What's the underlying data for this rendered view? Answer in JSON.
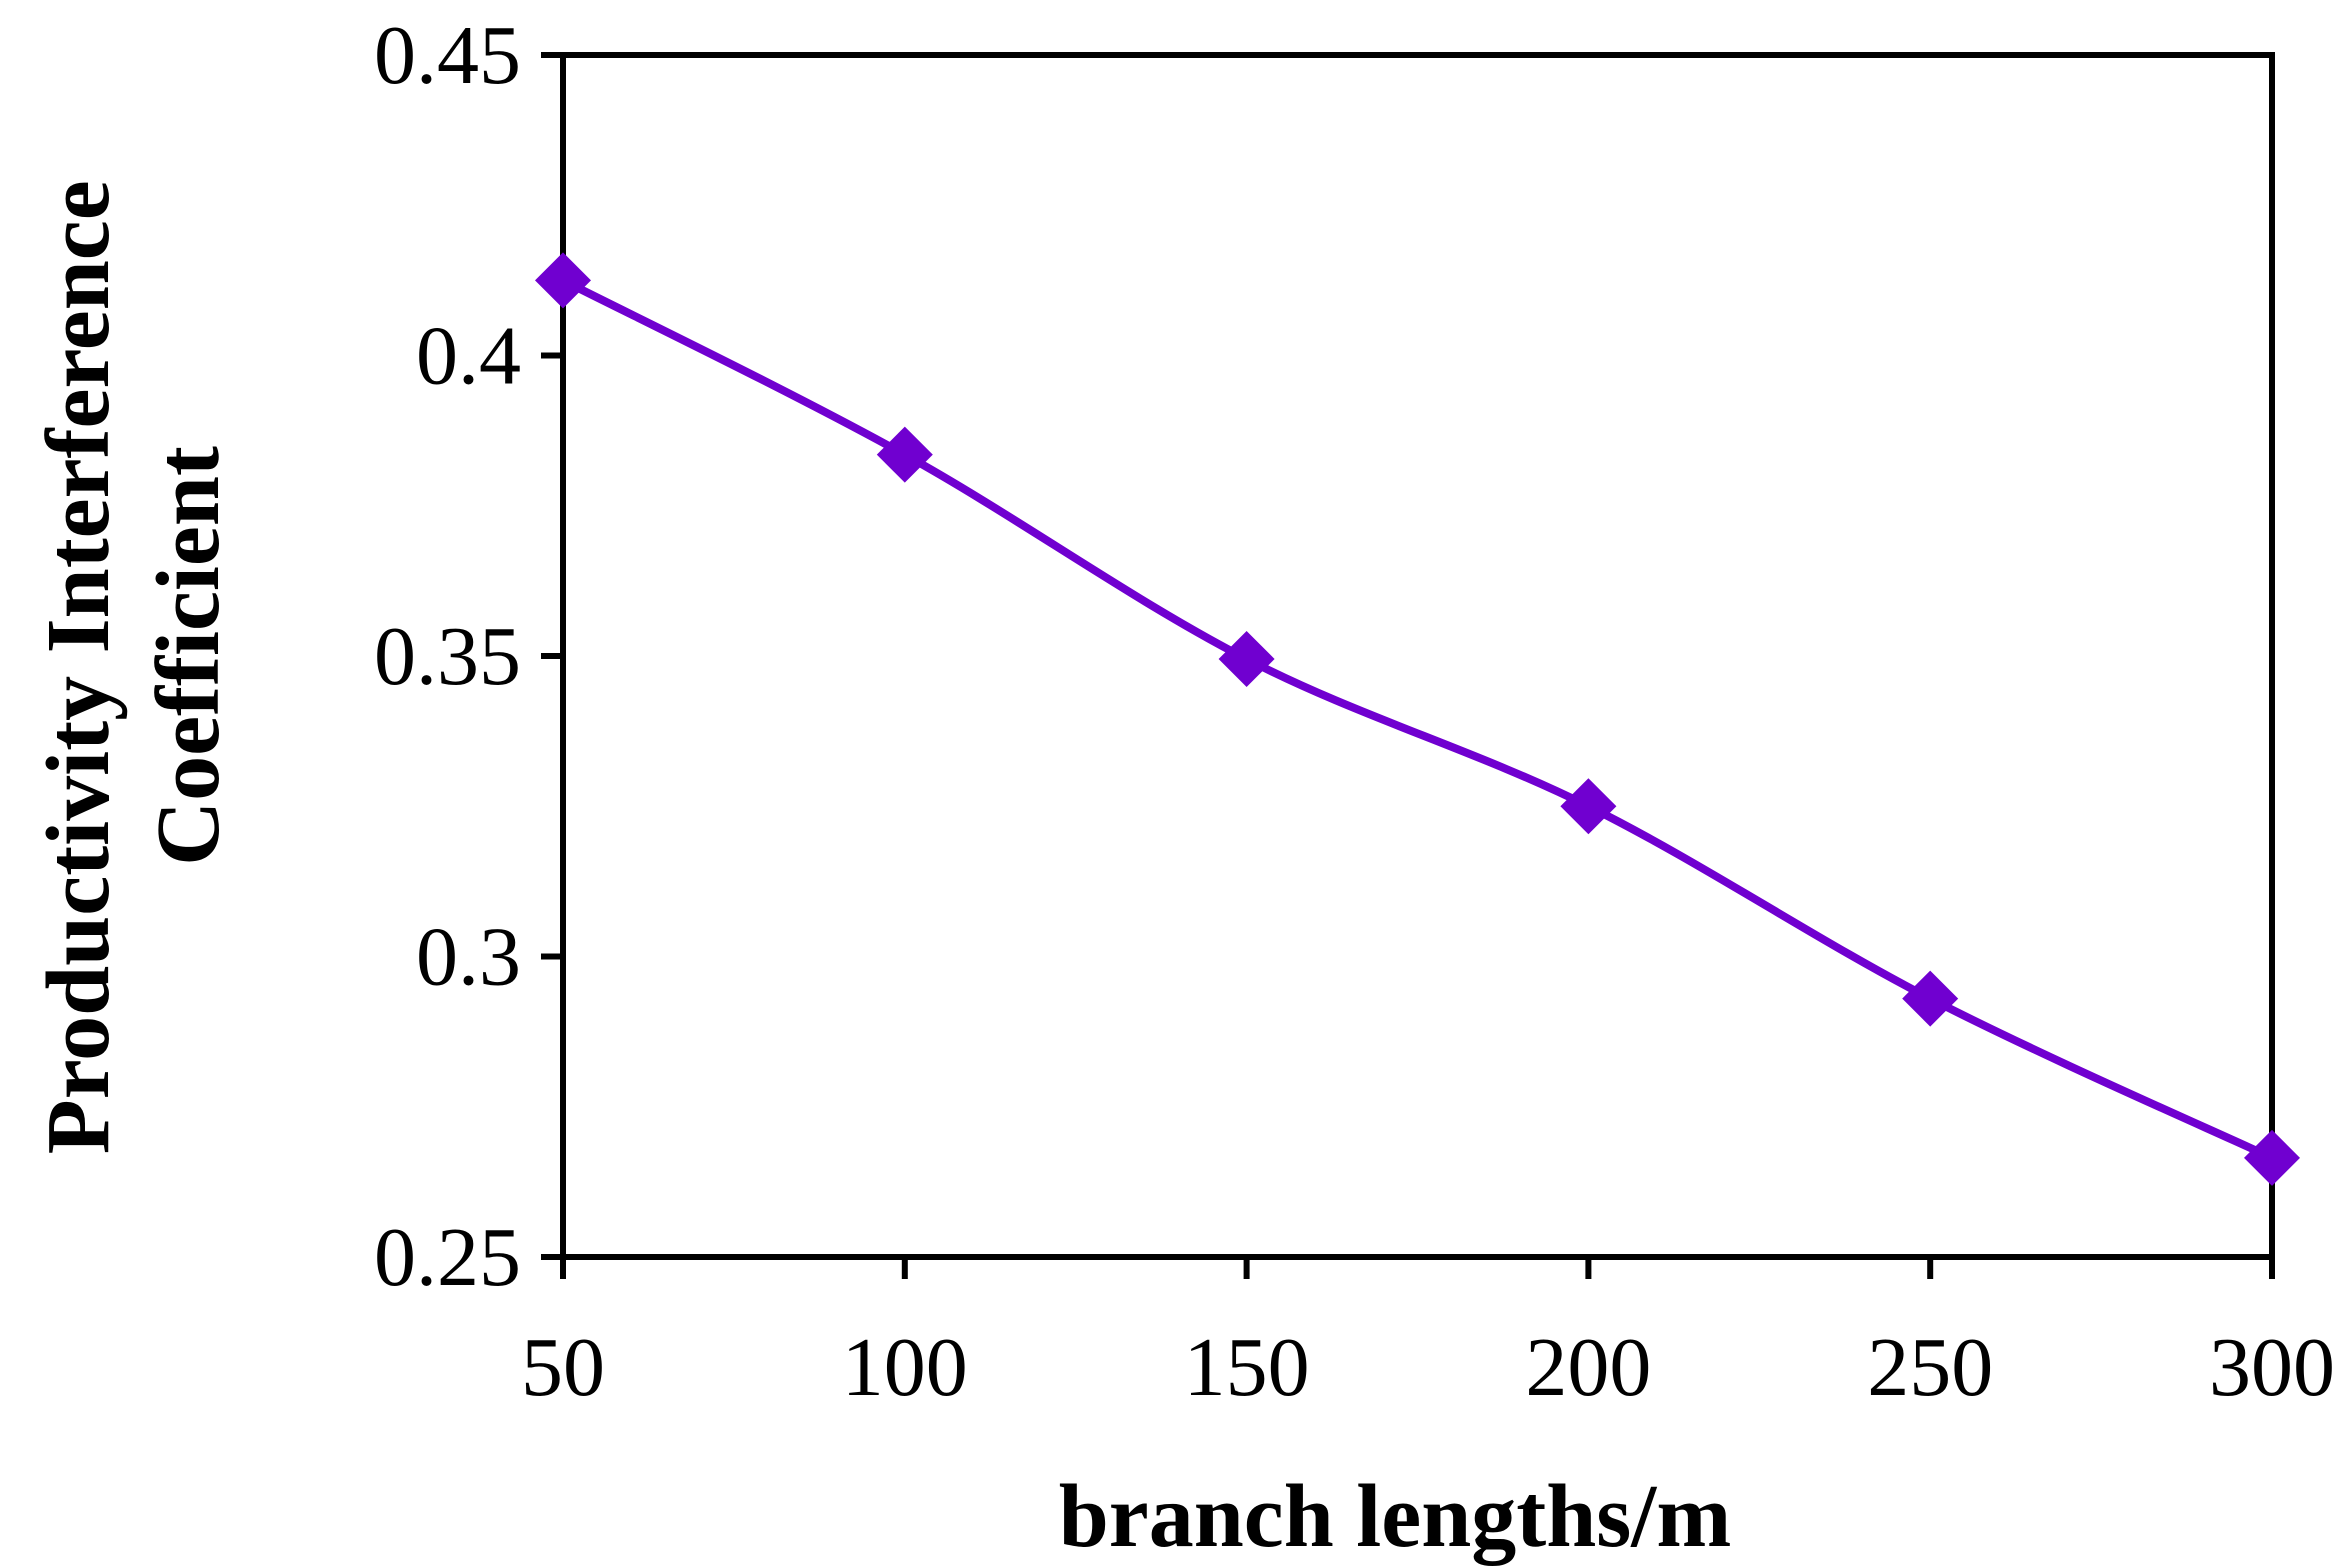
{
  "chart_data": {
    "type": "line",
    "title": "",
    "xlabel": "branch lengths/m",
    "ylabel_lines": [
      "Productivity Interference",
      "Coefficient"
    ],
    "x": [
      50,
      100,
      150,
      200,
      250,
      300
    ],
    "series": [
      {
        "values": [
          0.4125,
          0.3835,
          0.3495,
          0.325,
          0.293,
          0.2665
        ],
        "color": "#7000d0"
      }
    ],
    "xlim": [
      50,
      300
    ],
    "ylim": [
      0.25,
      0.45
    ],
    "xticks": [
      "50",
      "100",
      "150",
      "200",
      "250",
      "300"
    ],
    "yticks": [
      "0.25",
      "0.3",
      "0.35",
      "0.4",
      "0.45"
    ],
    "grid": false,
    "marker": "diamond"
  }
}
